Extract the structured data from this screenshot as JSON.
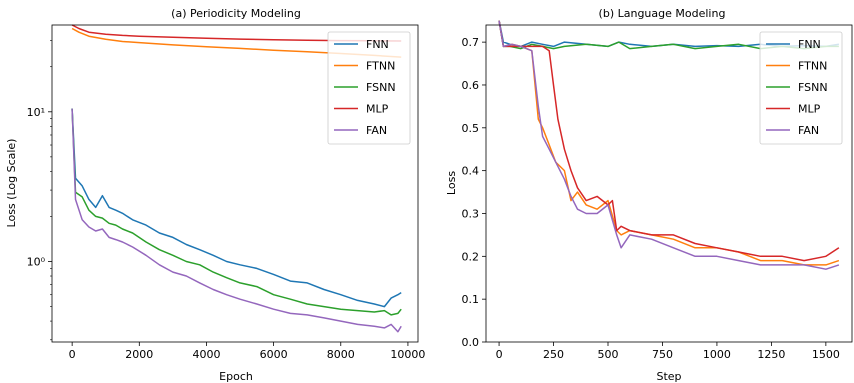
{
  "colors": {
    "FNN": "#1f77b4",
    "FTNN": "#ff7f0e",
    "FSNN": "#2ca02c",
    "MLP": "#d62728",
    "FAN": "#9467bd"
  },
  "chart_data": [
    {
      "type": "line",
      "title": "(a) Periodicity Modeling",
      "xlabel": "Epoch",
      "ylabel": "Loss (Log Scale)",
      "yscale": "log",
      "xlim": [
        -600,
        10300
      ],
      "ylim": [
        0.29,
        38
      ],
      "xticks": [
        0,
        2000,
        4000,
        6000,
        8000,
        10000
      ],
      "xtick_labels": [
        "0",
        "2000",
        "4000",
        "6000",
        "8000",
        "10000"
      ],
      "yticks": [
        1,
        10
      ],
      "ytick_labels": [
        "10⁰",
        "10¹"
      ],
      "legend_position": "top-right",
      "legend": [
        "FNN",
        "FTNN",
        "FSNN",
        "MLP",
        "FAN"
      ],
      "series": [
        {
          "name": "FNN",
          "x": [
            0,
            100,
            300,
            500,
            700,
            900,
            1100,
            1300,
            1500,
            1800,
            2200,
            2600,
            3000,
            3400,
            3800,
            4200,
            4600,
            5000,
            5500,
            6000,
            6500,
            7000,
            7500,
            8000,
            8500,
            9000,
            9300,
            9500,
            9700,
            9800
          ],
          "y": [
            10.5,
            3.6,
            3.2,
            2.6,
            2.3,
            2.75,
            2.3,
            2.2,
            2.1,
            1.9,
            1.75,
            1.55,
            1.45,
            1.3,
            1.2,
            1.1,
            1.0,
            0.95,
            0.9,
            0.82,
            0.74,
            0.72,
            0.65,
            0.6,
            0.55,
            0.52,
            0.5,
            0.57,
            0.6,
            0.62
          ]
        },
        {
          "name": "FTNN",
          "x": [
            0,
            200,
            500,
            1000,
            1500,
            2000,
            3000,
            4000,
            5000,
            6000,
            7000,
            8000,
            9000,
            9800
          ],
          "y": [
            36,
            34,
            32,
            30.5,
            29.5,
            29,
            28,
            27.2,
            26.5,
            25.8,
            25.2,
            24.5,
            23.8,
            23.2
          ]
        },
        {
          "name": "FSNN",
          "x": [
            0,
            100,
            300,
            500,
            700,
            900,
            1100,
            1300,
            1500,
            1800,
            2200,
            2600,
            3000,
            3400,
            3800,
            4200,
            4600,
            5000,
            5500,
            6000,
            6500,
            7000,
            7500,
            8000,
            8500,
            9000,
            9300,
            9500,
            9700,
            9800
          ],
          "y": [
            10.5,
            2.9,
            2.7,
            2.2,
            2.0,
            1.95,
            1.8,
            1.75,
            1.65,
            1.55,
            1.35,
            1.2,
            1.1,
            1.0,
            0.95,
            0.85,
            0.78,
            0.72,
            0.68,
            0.6,
            0.56,
            0.52,
            0.5,
            0.48,
            0.47,
            0.46,
            0.47,
            0.44,
            0.45,
            0.48
          ]
        },
        {
          "name": "MLP",
          "x": [
            0,
            200,
            500,
            1000,
            1500,
            2000,
            3000,
            4000,
            5000,
            6000,
            7000,
            8000,
            9000,
            9800
          ],
          "y": [
            38,
            36,
            34,
            33,
            32.4,
            32,
            31.5,
            31,
            30.6,
            30.3,
            30.1,
            29.9,
            29.8,
            29.7
          ]
        },
        {
          "name": "FAN",
          "x": [
            0,
            100,
            300,
            500,
            700,
            900,
            1100,
            1300,
            1500,
            1800,
            2200,
            2600,
            3000,
            3400,
            3800,
            4200,
            4600,
            5000,
            5500,
            6000,
            6500,
            7000,
            7500,
            8000,
            8500,
            9000,
            9300,
            9500,
            9700,
            9800
          ],
          "y": [
            10.5,
            2.6,
            1.9,
            1.7,
            1.6,
            1.65,
            1.45,
            1.4,
            1.35,
            1.25,
            1.1,
            0.95,
            0.85,
            0.8,
            0.72,
            0.65,
            0.6,
            0.56,
            0.52,
            0.48,
            0.45,
            0.44,
            0.42,
            0.4,
            0.38,
            0.37,
            0.36,
            0.38,
            0.34,
            0.37
          ]
        }
      ]
    },
    {
      "type": "line",
      "title": "(b) Language Modeling",
      "xlabel": "Step",
      "ylabel": "Loss",
      "xlim": [
        -60,
        1620
      ],
      "ylim": [
        0.0,
        0.74
      ],
      "xticks": [
        0,
        250,
        500,
        750,
        1000,
        1250,
        1500
      ],
      "xtick_labels": [
        "0",
        "250",
        "500",
        "750",
        "1000",
        "1250",
        "1500"
      ],
      "yticks": [
        0.0,
        0.1,
        0.2,
        0.3,
        0.4,
        0.5,
        0.6,
        0.7
      ],
      "ytick_labels": [
        "0.0",
        "0.1",
        "0.2",
        "0.3",
        "0.4",
        "0.5",
        "0.6",
        "0.7"
      ],
      "legend_position": "top-right",
      "legend": [
        "FNN",
        "FTNN",
        "FSNN",
        "MLP",
        "FAN"
      ],
      "series": [
        {
          "name": "FNN",
          "x": [
            0,
            20,
            50,
            100,
            150,
            200,
            250,
            300,
            400,
            500,
            550,
            600,
            700,
            800,
            900,
            1000,
            1100,
            1200,
            1300,
            1400,
            1500,
            1560
          ],
          "y": [
            0.75,
            0.7,
            0.695,
            0.69,
            0.7,
            0.695,
            0.69,
            0.7,
            0.695,
            0.69,
            0.7,
            0.695,
            0.69,
            0.695,
            0.69,
            0.692,
            0.69,
            0.695,
            0.69,
            0.692,
            0.69,
            0.695
          ]
        },
        {
          "name": "FTNN",
          "x": [
            0,
            20,
            60,
            100,
            150,
            180,
            200,
            230,
            260,
            300,
            330,
            360,
            400,
            450,
            500,
            540,
            560,
            600,
            700,
            800,
            900,
            1000,
            1100,
            1200,
            1300,
            1400,
            1500,
            1560
          ],
          "y": [
            0.75,
            0.69,
            0.695,
            0.69,
            0.68,
            0.52,
            0.5,
            0.46,
            0.42,
            0.4,
            0.33,
            0.35,
            0.32,
            0.31,
            0.33,
            0.26,
            0.25,
            0.26,
            0.25,
            0.24,
            0.22,
            0.22,
            0.21,
            0.19,
            0.19,
            0.18,
            0.18,
            0.19
          ]
        },
        {
          "name": "FSNN",
          "x": [
            0,
            20,
            50,
            100,
            150,
            200,
            250,
            300,
            400,
            500,
            550,
            600,
            700,
            800,
            900,
            1000,
            1100,
            1200,
            1300,
            1400,
            1500,
            1560
          ],
          "y": [
            0.75,
            0.69,
            0.69,
            0.685,
            0.695,
            0.69,
            0.685,
            0.69,
            0.695,
            0.69,
            0.7,
            0.685,
            0.69,
            0.695,
            0.685,
            0.69,
            0.695,
            0.685,
            0.69,
            0.685,
            0.69,
            0.69
          ]
        },
        {
          "name": "MLP",
          "x": [
            0,
            20,
            50,
            100,
            200,
            230,
            250,
            270,
            300,
            330,
            360,
            400,
            450,
            500,
            520,
            540,
            560,
            600,
            700,
            800,
            900,
            1000,
            1100,
            1200,
            1300,
            1400,
            1500,
            1560
          ],
          "y": [
            0.75,
            0.69,
            0.69,
            0.69,
            0.69,
            0.68,
            0.6,
            0.52,
            0.45,
            0.4,
            0.36,
            0.33,
            0.34,
            0.32,
            0.33,
            0.26,
            0.27,
            0.26,
            0.25,
            0.25,
            0.23,
            0.22,
            0.21,
            0.2,
            0.2,
            0.19,
            0.2,
            0.22
          ]
        },
        {
          "name": "FAN",
          "x": [
            0,
            20,
            60,
            100,
            150,
            180,
            200,
            230,
            260,
            300,
            330,
            360,
            400,
            450,
            500,
            540,
            560,
            600,
            700,
            800,
            900,
            1000,
            1100,
            1200,
            1300,
            1400,
            1500,
            1560
          ],
          "y": [
            0.75,
            0.69,
            0.695,
            0.69,
            0.68,
            0.55,
            0.48,
            0.45,
            0.42,
            0.38,
            0.34,
            0.31,
            0.3,
            0.3,
            0.32,
            0.25,
            0.22,
            0.25,
            0.24,
            0.22,
            0.2,
            0.2,
            0.19,
            0.18,
            0.18,
            0.18,
            0.17,
            0.18
          ]
        }
      ]
    }
  ]
}
